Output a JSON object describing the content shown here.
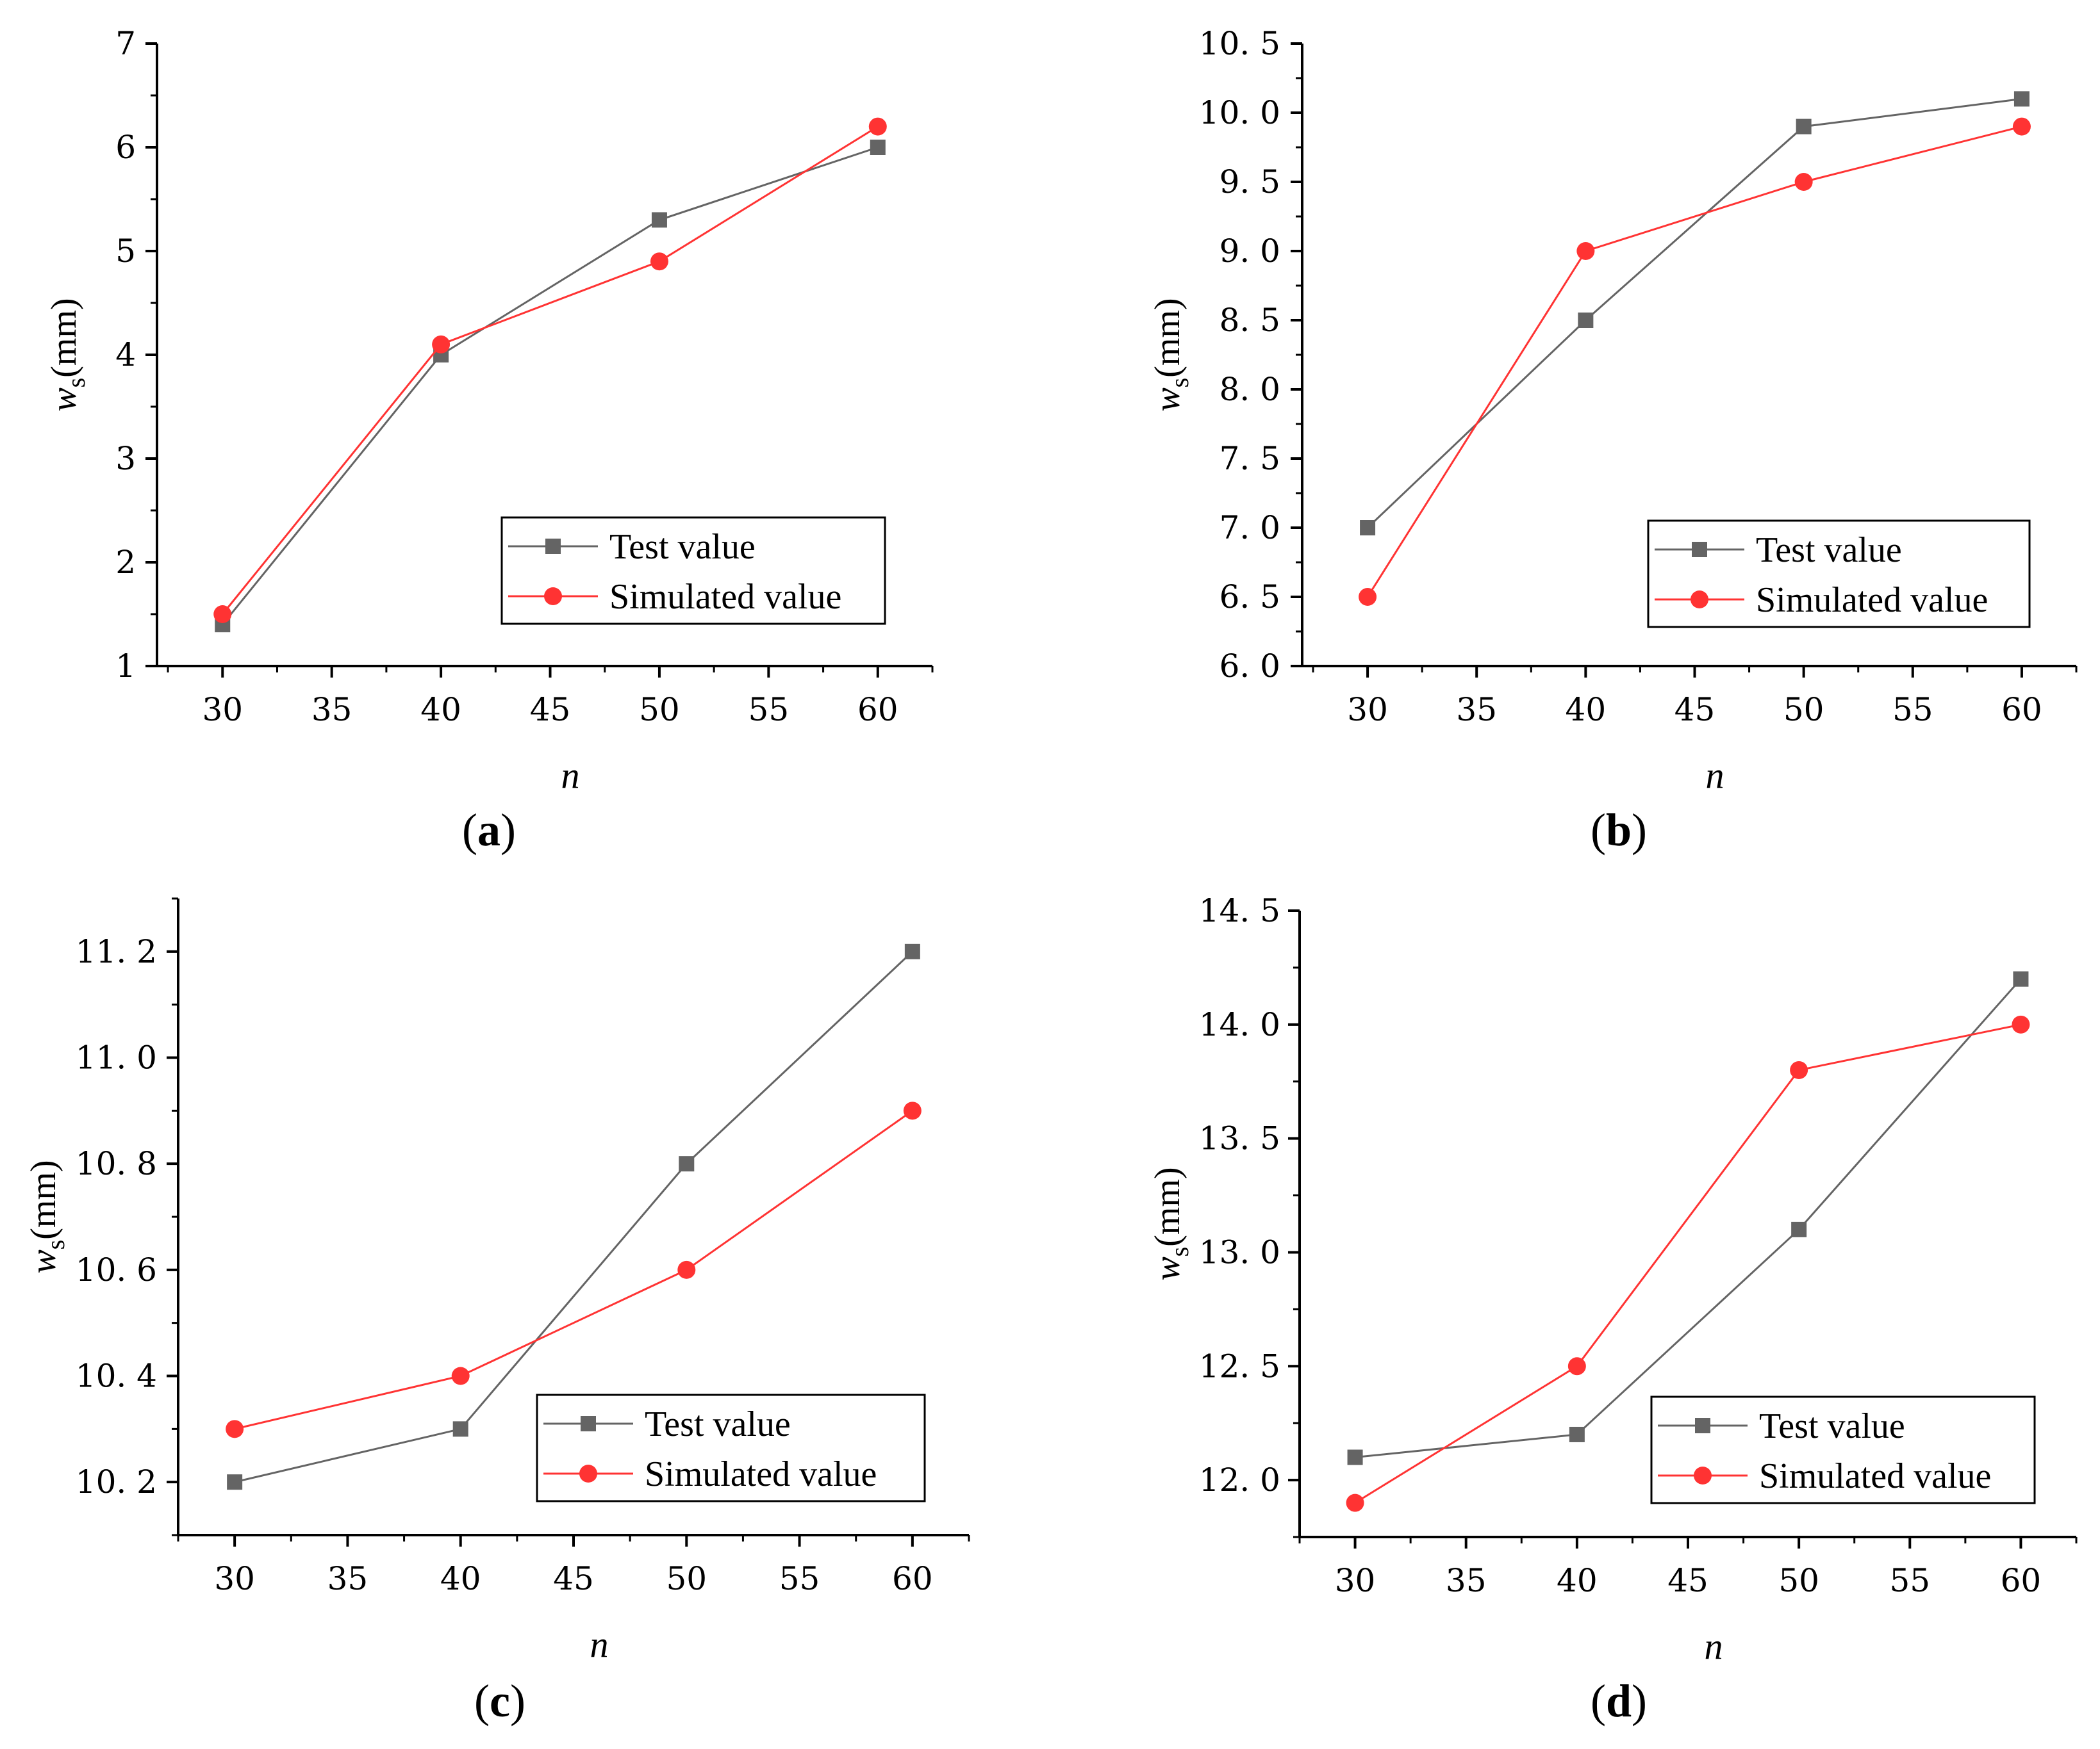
{
  "chart_data": [
    {
      "panel": "(a)",
      "panel_letter": "a",
      "type": "line",
      "x": [
        30,
        40,
        50,
        60
      ],
      "xlabel": "n",
      "ylabel": "w_s(mm)",
      "xlim": [
        27,
        62.5
      ],
      "ylim": [
        1,
        7
      ],
      "xticks": [
        30,
        35,
        40,
        45,
        50,
        55,
        60
      ],
      "xtick_labels": [
        "30",
        "35",
        "40",
        "45",
        "50",
        "55",
        "60"
      ],
      "yticks": [
        1,
        2,
        3,
        4,
        5,
        6,
        7
      ],
      "ytick_labels": [
        "1",
        "2",
        "3",
        "4",
        "5",
        "6",
        "7"
      ],
      "series": [
        {
          "name": "Test value",
          "values": [
            1.4,
            4.0,
            5.3,
            6.0
          ],
          "color": "#646464",
          "marker": "square"
        },
        {
          "name": "Simulated value",
          "values": [
            1.5,
            4.1,
            4.9,
            6.2
          ],
          "color": "#ff3333",
          "marker": "circle"
        }
      ],
      "legend": "bottom-right"
    },
    {
      "panel": "(b)",
      "panel_letter": "b",
      "type": "line",
      "x": [
        30,
        40,
        50,
        60
      ],
      "xlabel": "n",
      "ylabel": "w_s(mm)",
      "xlim": [
        27,
        62.5
      ],
      "ylim": [
        6.0,
        10.5
      ],
      "xticks": [
        30,
        35,
        40,
        45,
        50,
        55,
        60
      ],
      "xtick_labels": [
        "30",
        "35",
        "40",
        "45",
        "50",
        "55",
        "60"
      ],
      "yticks": [
        6.0,
        6.5,
        7.0,
        7.5,
        8.0,
        8.5,
        9.0,
        9.5,
        10.0,
        10.5
      ],
      "ytick_labels": [
        "6. 0",
        "6. 5",
        "7. 0",
        "7. 5",
        "8. 0",
        "8. 5",
        "9. 0",
        "9. 5",
        "10. 0",
        "10. 5"
      ],
      "series": [
        {
          "name": "Test value",
          "values": [
            7.0,
            8.5,
            9.9,
            10.1
          ],
          "color": "#646464",
          "marker": "square"
        },
        {
          "name": "Simulated value",
          "values": [
            6.5,
            9.0,
            9.5,
            9.9
          ],
          "color": "#ff3333",
          "marker": "circle"
        }
      ],
      "legend": "bottom-right"
    },
    {
      "panel": "(c)",
      "panel_letter": "c",
      "type": "line",
      "x": [
        30,
        40,
        50,
        60
      ],
      "xlabel": "n",
      "ylabel": "w_s(mm)",
      "xlim": [
        27.5,
        62.5
      ],
      "ylim": [
        10.1,
        11.3
      ],
      "xticks": [
        30,
        35,
        40,
        45,
        50,
        55,
        60
      ],
      "xtick_labels": [
        "30",
        "35",
        "40",
        "45",
        "50",
        "55",
        "60"
      ],
      "yticks": [
        10.2,
        10.4,
        10.6,
        10.8,
        11.0,
        11.2
      ],
      "ytick_labels": [
        "10. 2",
        "10. 4",
        "10. 6",
        "10. 8",
        "11. 0",
        "11. 2"
      ],
      "series": [
        {
          "name": "Test value",
          "values": [
            10.2,
            10.3,
            10.8,
            11.2
          ],
          "color": "#646464",
          "marker": "square"
        },
        {
          "name": "Simulated value",
          "values": [
            10.3,
            10.4,
            10.6,
            10.9
          ],
          "color": "#ff3333",
          "marker": "circle"
        }
      ],
      "legend": "bottom-right"
    },
    {
      "panel": "(d)",
      "panel_letter": "d",
      "type": "line",
      "x": [
        30,
        40,
        50,
        60
      ],
      "xlabel": "n",
      "ylabel": "w_s(mm)",
      "xlim": [
        27.5,
        62.5
      ],
      "ylim": [
        11.75,
        14.5
      ],
      "xticks": [
        30,
        35,
        40,
        45,
        50,
        55,
        60
      ],
      "xtick_labels": [
        "30",
        "35",
        "40",
        "45",
        "50",
        "55",
        "60"
      ],
      "yticks": [
        12.0,
        12.5,
        13.0,
        13.5,
        14.0,
        14.5
      ],
      "ytick_labels": [
        "12. 0",
        "12. 5",
        "13. 0",
        "13. 5",
        "14. 0",
        "14. 5"
      ],
      "series": [
        {
          "name": "Test value",
          "values": [
            12.1,
            12.2,
            13.1,
            14.2
          ],
          "color": "#646464",
          "marker": "square"
        },
        {
          "name": "Simulated value",
          "values": [
            11.9,
            12.5,
            13.8,
            14.0
          ],
          "color": "#ff3333",
          "marker": "circle"
        }
      ],
      "legend": "bottom-right"
    }
  ]
}
